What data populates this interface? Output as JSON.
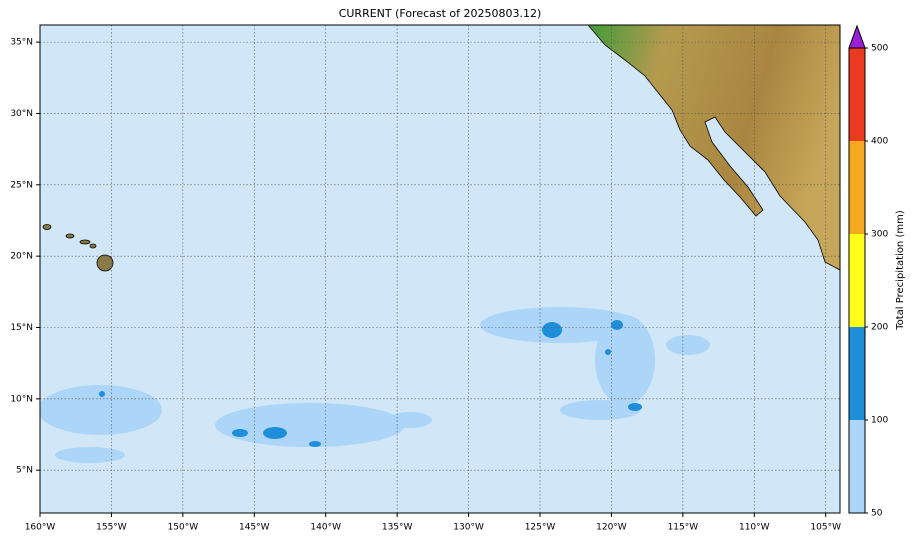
{
  "map_data": {
    "title": "CURRENT (Forecast of 20250803.12)",
    "xlim": [
      -160,
      -104
    ],
    "ylim": [
      2,
      36.2
    ],
    "xticks": [
      {
        "value": -160,
        "label": "160°W"
      },
      {
        "value": -155,
        "label": "155°W"
      },
      {
        "value": -150,
        "label": "150°W"
      },
      {
        "value": -145,
        "label": "145°W"
      },
      {
        "value": -140,
        "label": "140°W"
      },
      {
        "value": -135,
        "label": "135°W"
      },
      {
        "value": -130,
        "label": "130°W"
      },
      {
        "value": -125,
        "label": "125°W"
      },
      {
        "value": -120,
        "label": "120°W"
      },
      {
        "value": -115,
        "label": "115°W"
      },
      {
        "value": -110,
        "label": "110°W"
      },
      {
        "value": -105,
        "label": "105°W"
      }
    ],
    "yticks": [
      {
        "value": 5,
        "label": "5°N"
      },
      {
        "value": 10,
        "label": "10°N"
      },
      {
        "value": 15,
        "label": "15°N"
      },
      {
        "value": 20,
        "label": "20°N"
      },
      {
        "value": 25,
        "label": "25°N"
      },
      {
        "value": 30,
        "label": "30°N"
      },
      {
        "value": 35,
        "label": "35°N"
      }
    ],
    "grid": true,
    "colorbar": {
      "label": "Total Precipitation (mm)",
      "ticks": [
        50,
        100,
        200,
        300,
        400,
        500
      ],
      "colors": [
        "#acd5f8",
        "#1e8ed8",
        "#ffff1a",
        "#f6a91f",
        "#ea3a22"
      ],
      "over_color": "#9b1fd4"
    }
  }
}
